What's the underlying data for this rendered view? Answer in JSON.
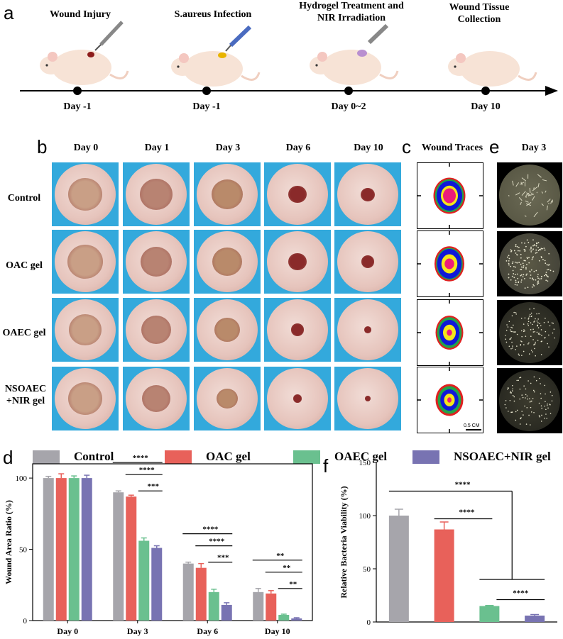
{
  "panels": {
    "a": "a",
    "b": "b",
    "c": "c",
    "d": "d",
    "e": "e",
    "f": "f"
  },
  "timeline": {
    "steps": [
      {
        "label": "Wound Injury",
        "day": "Day  -1"
      },
      {
        "label": "S.aureus Infection",
        "day": "Day  -1"
      },
      {
        "label": "Hydrogel Treatment and NIR Irradiation",
        "day": "Day  0~2"
      },
      {
        "label": "Wound Tissue Collection",
        "day": "Day  10"
      }
    ]
  },
  "photo_grid": {
    "days": [
      "Day 0",
      "Day 1",
      "Day 3",
      "Day 6",
      "Day 10"
    ],
    "groups": [
      "Control",
      "OAC gel",
      "OAEC gel",
      "NSOAEC +NIR gel"
    ]
  },
  "wound_traces": {
    "title": "Wound Traces",
    "scale_label": "0.5 CM"
  },
  "plates": {
    "title": "Day 3"
  },
  "legend": [
    {
      "name": "Control",
      "color": "#a6a5ab"
    },
    {
      "name": "OAC gel",
      "color": "#e8615a"
    },
    {
      "name": "OAEC gel",
      "color": "#6ac08f"
    },
    {
      "name": "NSOAEC+NIR gel",
      "color": "#7873b2"
    }
  ],
  "chart_data": [
    {
      "type": "bar",
      "panel": "d",
      "ylabel": "Wound Area Ratio (%)",
      "ylim": [
        0,
        110
      ],
      "yticks": [
        0,
        50,
        100
      ],
      "categories": [
        "Day 0",
        "Day 3",
        "Day 6",
        "Day 10"
      ],
      "series": [
        {
          "name": "Control",
          "values": [
            100,
            90,
            40,
            20
          ],
          "errors": [
            1.2,
            1,
            1,
            2.5
          ]
        },
        {
          "name": "OAC gel",
          "values": [
            100,
            87,
            37,
            19
          ],
          "errors": [
            3,
            1,
            3,
            2
          ]
        },
        {
          "name": "OAEC gel",
          "values": [
            100,
            56,
            20,
            4
          ],
          "errors": [
            1.5,
            2,
            2,
            0.5
          ]
        },
        {
          "name": "NSOAEC+NIR gel",
          "values": [
            100,
            51,
            11,
            1.5
          ],
          "errors": [
            2,
            1.5,
            1.5,
            0.5
          ]
        }
      ],
      "significance": [
        {
          "category": "Day 3",
          "labels": [
            "****",
            "****",
            "***"
          ]
        },
        {
          "category": "Day 6",
          "labels": [
            "****",
            "****",
            "***"
          ]
        },
        {
          "category": "Day 10",
          "labels": [
            "**",
            "**",
            "**"
          ]
        }
      ]
    },
    {
      "type": "bar",
      "panel": "f",
      "ylabel": "Relative Bacteria Viability (%)",
      "ylim": [
        0,
        150
      ],
      "yticks": [
        0,
        50,
        100,
        150
      ],
      "series": [
        {
          "name": "Control",
          "values": [
            100
          ],
          "errors": [
            6
          ]
        },
        {
          "name": "OAC gel",
          "values": [
            87
          ],
          "errors": [
            7
          ]
        },
        {
          "name": "OAEC gel",
          "values": [
            15
          ],
          "errors": [
            0.5
          ]
        },
        {
          "name": "NSOAEC+NIR gel",
          "values": [
            6
          ],
          "errors": [
            1
          ]
        }
      ],
      "significance": [
        "****",
        "****",
        "****"
      ]
    }
  ]
}
